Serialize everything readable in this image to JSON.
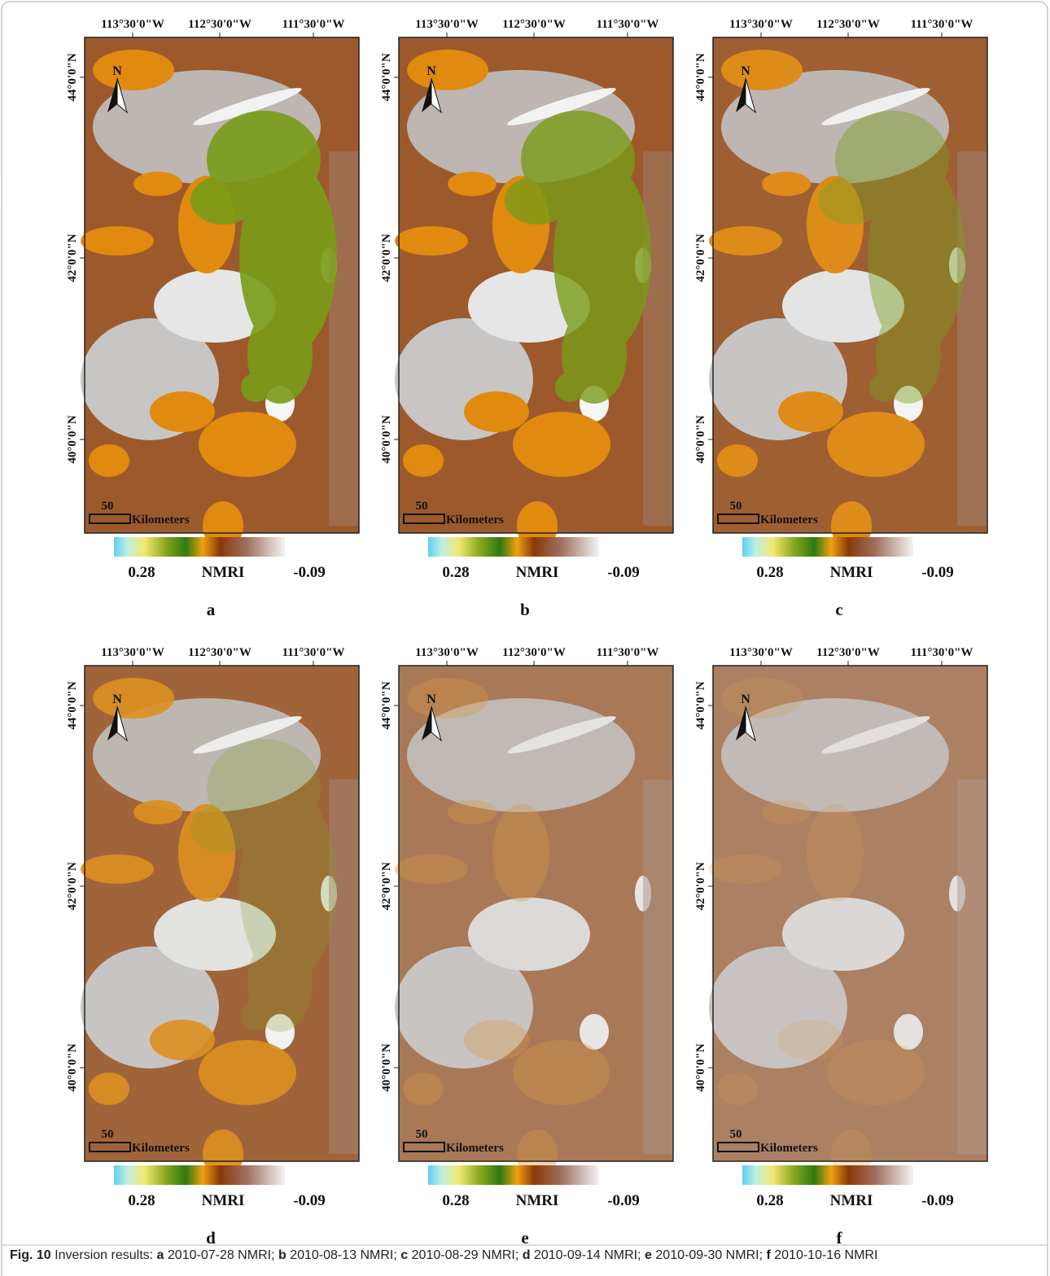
{
  "figure": {
    "panels": [
      {
        "letter": "a",
        "lon_labels": [
          "113°30'0\"W",
          "112°30'0\"W",
          "111°30'0\"W"
        ],
        "lat_labels": [
          "44°0'0\"N",
          "42°0'0\"N",
          "40°0'0\"N"
        ],
        "north": "N",
        "scale_value": "50",
        "scale_unit": "Kilometers",
        "legend": {
          "max": "0.28",
          "title": "NMRI",
          "min": "-0.09"
        }
      },
      {
        "letter": "b",
        "lon_labels": [
          "113°30'0\"W",
          "112°30'0\"W",
          "111°30'0\"W"
        ],
        "lat_labels": [
          "44°0'0\"N",
          "42°0'0\"N",
          "40°0'0\"N"
        ],
        "north": "N",
        "scale_value": "50",
        "scale_unit": "Kilometers",
        "legend": {
          "max": "0.28",
          "title": "NMRI",
          "min": "-0.09"
        }
      },
      {
        "letter": "c",
        "lon_labels": [
          "113°30'0\"W",
          "112°30'0\"W",
          "111°30'0\"W"
        ],
        "lat_labels": [
          "44°0'0\"N",
          "42°0'0\"N",
          "40°0'0\"N"
        ],
        "north": "N",
        "scale_value": "50",
        "scale_unit": "Kilometers",
        "legend": {
          "max": "0.28",
          "title": "NMRI",
          "min": "-0.09"
        }
      },
      {
        "letter": "d",
        "lon_labels": [
          "113°30'0\"W",
          "112°30'0\"W",
          "111°30'0\"W"
        ],
        "lat_labels": [
          "44°0'0\"N",
          "42°0'0\"N",
          "40°0'0\"N"
        ],
        "north": "N",
        "scale_value": "50",
        "scale_unit": "Kilometers",
        "legend": {
          "max": "0.28",
          "title": "NMRI",
          "min": "-0.09"
        }
      },
      {
        "letter": "e",
        "lon_labels": [
          "113°30'0\"W",
          "112°30'0\"W",
          "111°30'0\"W"
        ],
        "lat_labels": [
          "44°0'0\"N",
          "42°0'0\"N",
          "40°0'0\"N"
        ],
        "north": "N",
        "scale_value": "50",
        "scale_unit": "Kilometers",
        "legend": {
          "max": "0.28",
          "title": "NMRI",
          "min": "-0.09"
        }
      },
      {
        "letter": "f",
        "lon_labels": [
          "113°30'0\"W",
          "112°30'0\"W",
          "111°30'0\"W"
        ],
        "lat_labels": [
          "44°0'0\"N",
          "42°0'0\"N",
          "40°0'0\"N"
        ],
        "north": "N",
        "scale_value": "50",
        "scale_unit": "Kilometers",
        "legend": {
          "max": "0.28",
          "title": "NMRI",
          "min": "-0.09"
        }
      }
    ],
    "caption": {
      "label": "Fig. 10",
      "intro": "Inversion results:",
      "items": [
        {
          "letter": "a",
          "text": "2010-07-28 NMRI;"
        },
        {
          "letter": "b",
          "text": "2010-08-13 NMRI;"
        },
        {
          "letter": "c",
          "text": "2010-08-29 NMRI;"
        },
        {
          "letter": "d",
          "text": "2010-09-14 NMRI;"
        },
        {
          "letter": "e",
          "text": "2010-09-30 NMRI;"
        },
        {
          "letter": "f",
          "text": "2010-10-16 NMRI"
        }
      ]
    }
  }
}
